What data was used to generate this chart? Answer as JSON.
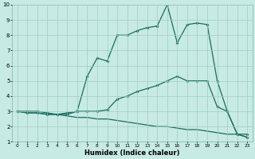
{
  "xlabel": "Humidex (Indice chaleur)",
  "xlim": [
    -0.5,
    23.5
  ],
  "ylim": [
    1,
    10
  ],
  "xticks": [
    0,
    1,
    2,
    3,
    4,
    5,
    6,
    7,
    8,
    9,
    10,
    11,
    12,
    13,
    14,
    15,
    16,
    17,
    18,
    19,
    20,
    21,
    22,
    23
  ],
  "yticks": [
    1,
    2,
    3,
    4,
    5,
    6,
    7,
    8,
    9,
    10
  ],
  "bg_color": "#c8eae4",
  "grid_color": "#9eccc5",
  "line_color": "#1a6b5e",
  "line2_x": [
    0,
    1,
    2,
    3,
    4,
    5,
    6,
    7,
    8,
    9,
    10,
    11,
    12,
    13,
    14,
    15,
    16,
    17,
    18,
    19,
    20,
    21,
    22,
    23
  ],
  "line2_y": [
    3.0,
    2.9,
    2.9,
    2.8,
    2.8,
    2.9,
    3.0,
    5.3,
    6.5,
    6.3,
    8.0,
    8.0,
    8.3,
    8.5,
    8.6,
    10.0,
    7.5,
    8.7,
    8.8,
    8.7,
    5.0,
    3.0,
    1.5,
    1.3
  ],
  "line1_x": [
    0,
    1,
    2,
    3,
    4,
    5,
    6,
    7,
    8,
    9,
    10,
    11,
    12,
    13,
    14,
    15,
    16,
    17,
    18,
    19,
    20,
    21,
    22,
    23
  ],
  "line1_y": [
    3.0,
    3.0,
    3.0,
    2.9,
    2.8,
    2.8,
    3.0,
    3.0,
    3.0,
    3.1,
    3.8,
    4.0,
    4.3,
    4.5,
    4.7,
    5.0,
    5.3,
    5.0,
    5.0,
    5.0,
    3.3,
    3.0,
    1.5,
    1.5
  ],
  "line3_x": [
    0,
    1,
    2,
    3,
    4,
    5,
    6,
    7,
    8,
    9,
    10,
    11,
    12,
    13,
    14,
    15,
    16,
    17,
    18,
    19,
    20,
    21,
    22,
    23
  ],
  "line3_y": [
    3.0,
    2.9,
    2.9,
    2.8,
    2.8,
    2.7,
    2.6,
    2.6,
    2.5,
    2.5,
    2.4,
    2.3,
    2.2,
    2.1,
    2.0,
    2.0,
    1.9,
    1.8,
    1.8,
    1.7,
    1.6,
    1.5,
    1.5,
    1.3
  ]
}
